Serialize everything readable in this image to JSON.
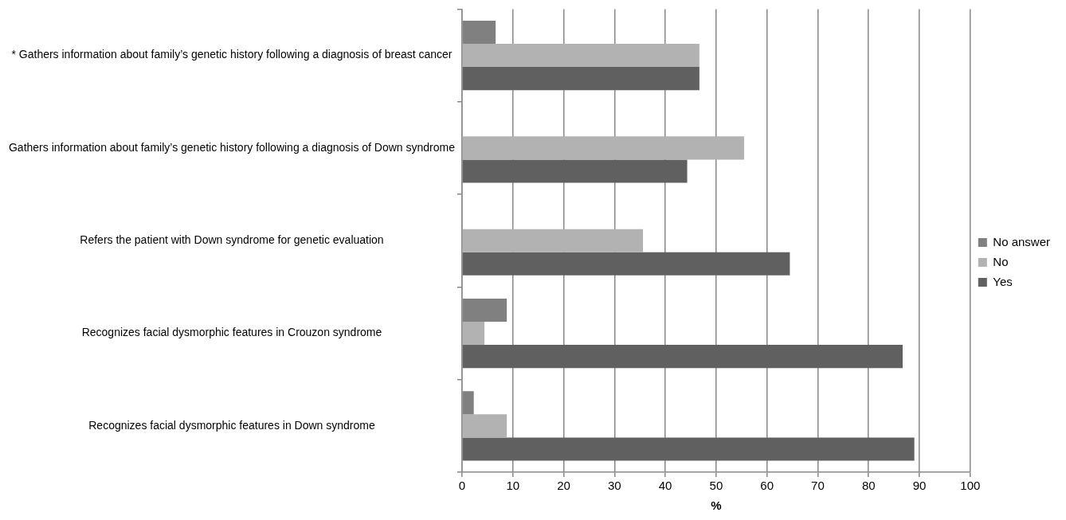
{
  "chart_data": {
    "type": "bar",
    "orientation": "horizontal",
    "xlabel": "%",
    "categories": [
      "* Gathers information about family’s genetic history following a diagnosis of breast cancer",
      "Gathers information about family’s genetic history following a diagnosis of Down syndrome",
      "Refers the patient with Down syndrome for genetic evaluation",
      "Recognizes facial dysmorphic features in Crouzon syndrome",
      "Recognizes facial dysmorphic features in Down syndrome"
    ],
    "series": [
      {
        "name": "No answer",
        "color": "#808080",
        "values": [
          6.6,
          0,
          0,
          8.8,
          2.3
        ]
      },
      {
        "name": "No",
        "color": "#b2b2b2",
        "values": [
          46.7,
          55.5,
          35.6,
          4.4,
          8.8
        ]
      },
      {
        "name": "Yes",
        "color": "#606060",
        "values": [
          46.7,
          44.3,
          64.5,
          86.7,
          89.0
        ]
      }
    ],
    "xlim": [
      0,
      100
    ],
    "xticks": [
      0,
      10,
      20,
      30,
      40,
      50,
      60,
      70,
      80,
      90,
      100
    ],
    "grid": "x",
    "legend": "right"
  }
}
